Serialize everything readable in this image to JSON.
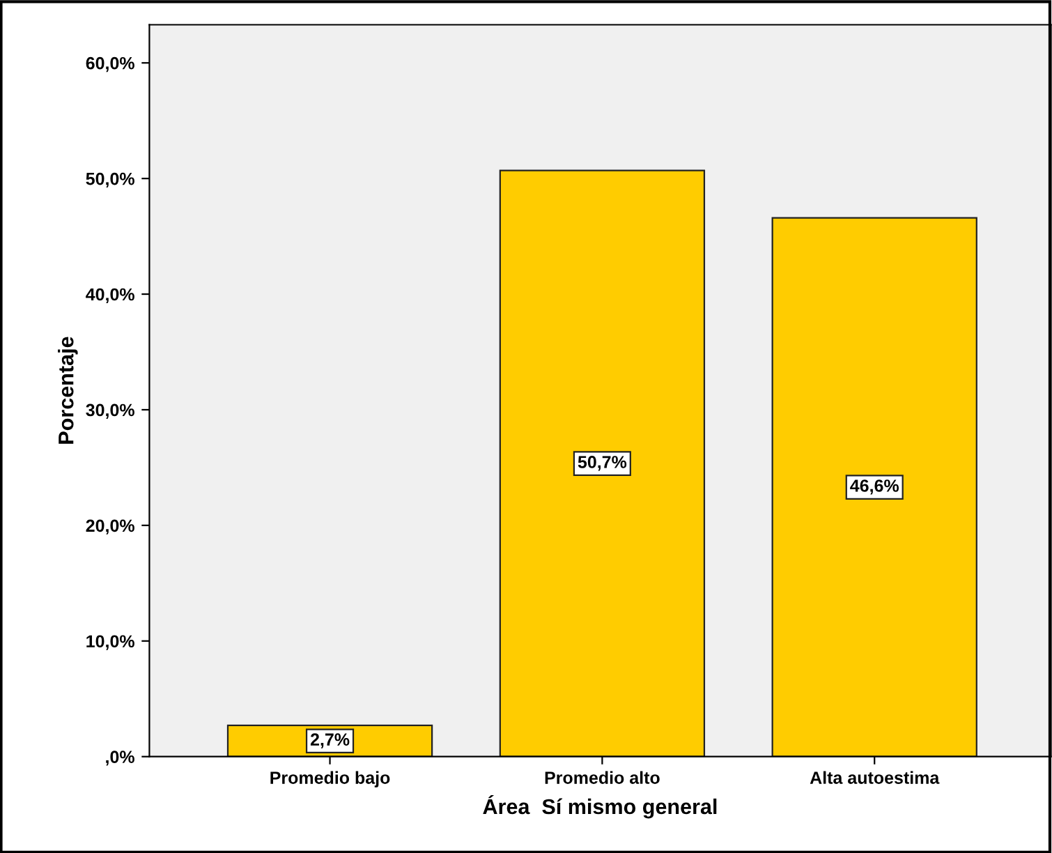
{
  "chart_data": {
    "type": "bar",
    "xlabel": "Área  Sí mismo general",
    "ylabel": "Porcentaje",
    "categories": [
      "Promedio bajo",
      "Promedio alto",
      "Alta autoestima"
    ],
    "values": [
      2.7,
      50.7,
      46.6
    ],
    "value_labels": [
      "2,7%",
      "50,7%",
      "46,6%"
    ],
    "color": "#ffcc00",
    "ylim": [
      0,
      63.3
    ],
    "yticks": [
      {
        "value": 0,
        "label": ",0%"
      },
      {
        "value": 10,
        "label": "10,0%"
      },
      {
        "value": 20,
        "label": "20,0%"
      },
      {
        "value": 30,
        "label": "30,0%"
      },
      {
        "value": 40,
        "label": "40,0%"
      },
      {
        "value": 50,
        "label": "50,0%"
      },
      {
        "value": 60,
        "label": "60,0%"
      }
    ],
    "grid": false
  }
}
